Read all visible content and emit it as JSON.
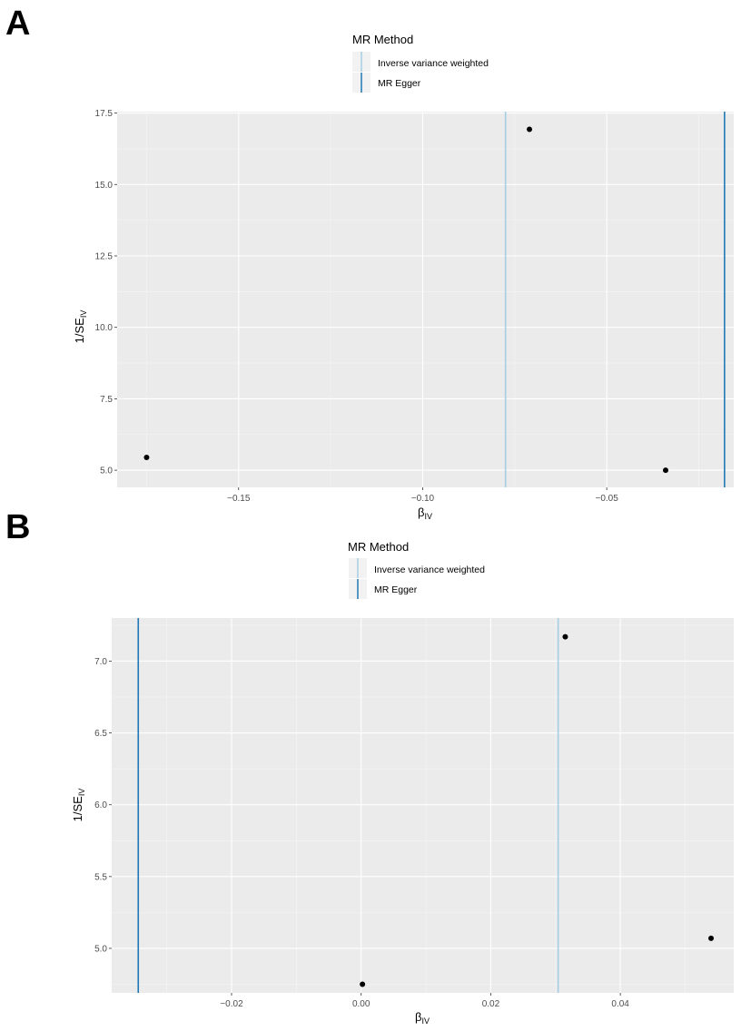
{
  "colors": {
    "panel_bg": "#ebebeb",
    "grid_major": "#ffffff",
    "ivw": "#a6cee3",
    "egger": "#1f78b4",
    "points": "#000000"
  },
  "chart_data": [
    {
      "type": "scatter",
      "panel_label": "A",
      "legend": {
        "title": "MR Method",
        "entries": [
          {
            "label": "Inverse variance weighted",
            "color": "#a6cee3"
          },
          {
            "label": "MR Egger",
            "color": "#1f78b4"
          }
        ],
        "placement": "top"
      },
      "xlabel": "β",
      "xlabel_sub": "IV",
      "ylabel": "1/SE",
      "ylabel_sub": "IV",
      "xlim": [
        -0.183,
        -0.0155
      ],
      "ylim": [
        4.4,
        17.55
      ],
      "xticks": [
        -0.15,
        -0.1,
        -0.05
      ],
      "xtick_labels": [
        "−0.15",
        "−0.10",
        "−0.05"
      ],
      "yticks": [
        5.0,
        7.5,
        10.0,
        12.5,
        15.0,
        17.5
      ],
      "ytick_labels": [
        "5.0",
        "7.5",
        "10.0",
        "12.5",
        "15.0",
        "17.5"
      ],
      "grid": true,
      "points": [
        {
          "x": -0.175,
          "y": 5.45
        },
        {
          "x": -0.071,
          "y": 16.93
        },
        {
          "x": -0.034,
          "y": 5.0
        }
      ],
      "vlines": [
        {
          "method": "Inverse variance weighted",
          "x": -0.0775
        },
        {
          "method": "MR Egger",
          "x": -0.018
        }
      ]
    },
    {
      "type": "scatter",
      "panel_label": "B",
      "legend": {
        "title": "MR Method",
        "entries": [
          {
            "label": "Inverse variance weighted",
            "color": "#a6cee3"
          },
          {
            "label": "MR Egger",
            "color": "#1f78b4"
          }
        ],
        "placement": "top"
      },
      "xlabel": "β",
      "xlabel_sub": "IV",
      "ylabel": "1/SE",
      "ylabel_sub": "IV",
      "xlim": [
        -0.0385,
        0.0575
      ],
      "ylim": [
        4.69,
        7.3
      ],
      "xticks": [
        -0.02,
        0.0,
        0.02,
        0.04
      ],
      "xtick_labels": [
        "−0.02",
        "0.00",
        "0.02",
        "0.04"
      ],
      "yticks": [
        5.0,
        5.5,
        6.0,
        6.5,
        7.0
      ],
      "ytick_labels": [
        "5.0",
        "5.5",
        "6.0",
        "6.5",
        "7.0"
      ],
      "grid": true,
      "points": [
        {
          "x": 0.0002,
          "y": 4.75
        },
        {
          "x": 0.0315,
          "y": 7.17
        },
        {
          "x": 0.054,
          "y": 5.07
        }
      ],
      "vlines": [
        {
          "method": "Inverse variance weighted",
          "x": 0.0304
        },
        {
          "method": "MR Egger",
          "x": -0.0344
        }
      ]
    }
  ]
}
